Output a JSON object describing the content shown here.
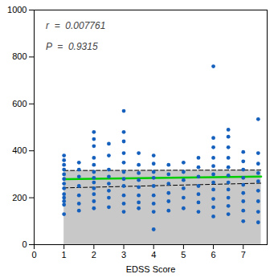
{
  "chart_data": {
    "type": "scatter",
    "xlabel": "EDSS Score",
    "xlim": [
      0,
      7.8
    ],
    "ylim": [
      0,
      1000
    ],
    "xticks": [
      0,
      1,
      2,
      3,
      4,
      5,
      6,
      7
    ],
    "yticks": [
      0,
      200,
      400,
      600,
      800,
      1000
    ],
    "annotations": [
      "r  =  0.007761",
      "P  =  0.9315"
    ],
    "color": "#1560BD",
    "x": [
      1.0,
      1.0,
      1.0,
      1.0,
      1.0,
      1.0,
      1.0,
      1.0,
      1.0,
      1.0,
      1.0,
      1.0,
      1.0,
      1.5,
      1.5,
      1.5,
      1.5,
      1.5,
      1.5,
      1.5,
      2.0,
      2.0,
      2.0,
      2.0,
      2.0,
      2.0,
      2.0,
      2.0,
      2.0,
      2.0,
      2.0,
      2.0,
      2.5,
      2.5,
      2.5,
      2.5,
      2.5,
      2.5,
      2.5,
      2.5,
      3.0,
      3.0,
      3.0,
      3.0,
      3.0,
      3.0,
      3.0,
      3.0,
      3.0,
      3.0,
      3.0,
      3.5,
      3.5,
      3.5,
      3.5,
      3.5,
      3.5,
      3.5,
      3.5,
      4.0,
      4.0,
      4.0,
      4.0,
      4.0,
      4.0,
      4.0,
      4.0,
      4.0,
      4.5,
      4.5,
      4.5,
      4.5,
      4.5,
      4.5,
      5.0,
      5.0,
      5.0,
      5.0,
      5.0,
      5.0,
      5.5,
      5.5,
      5.5,
      5.5,
      5.5,
      5.5,
      5.5,
      6.0,
      6.0,
      6.0,
      6.0,
      6.0,
      6.0,
      6.0,
      6.0,
      6.0,
      6.0,
      6.0,
      6.5,
      6.5,
      6.5,
      6.5,
      6.5,
      6.5,
      6.5,
      6.5,
      6.5,
      6.5,
      6.5,
      7.0,
      7.0,
      7.0,
      7.0,
      7.0,
      7.0,
      7.0,
      7.0,
      7.0,
      7.5,
      7.5,
      7.5,
      7.5,
      7.5,
      7.5,
      7.5,
      7.5,
      7.5
    ],
    "values": [
      130,
      170,
      185,
      200,
      215,
      240,
      260,
      280,
      300,
      320,
      340,
      360,
      380,
      145,
      175,
      210,
      250,
      290,
      320,
      350,
      155,
      185,
      215,
      240,
      265,
      285,
      310,
      340,
      370,
      420,
      450,
      480,
      160,
      200,
      230,
      260,
      290,
      320,
      380,
      430,
      140,
      175,
      210,
      250,
      280,
      310,
      350,
      390,
      440,
      480,
      570,
      155,
      180,
      210,
      245,
      275,
      305,
      340,
      390,
      65,
      140,
      175,
      210,
      250,
      285,
      310,
      345,
      380,
      145,
      185,
      220,
      260,
      300,
      340,
      155,
      200,
      240,
      275,
      310,
      350,
      140,
      180,
      215,
      250,
      290,
      330,
      370,
      120,
      160,
      195,
      235,
      265,
      300,
      335,
      370,
      415,
      455,
      760,
      130,
      165,
      200,
      235,
      265,
      295,
      330,
      370,
      415,
      460,
      490,
      100,
      145,
      185,
      220,
      255,
      285,
      320,
      355,
      395,
      95,
      140,
      185,
      230,
      270,
      305,
      345,
      390,
      535
    ],
    "regression_line": {
      "x": [
        1.0,
        7.6
      ],
      "values": [
        279.0,
        290.0
      ],
      "color": "#00CC00",
      "line_style": "solid"
    },
    "ci_upper": {
      "x": [
        1.0,
        7.6
      ],
      "values": [
        316.0,
        318.0
      ],
      "color": "#000000",
      "line_style": "dashed"
    },
    "ci_lower": {
      "x": [
        1.0,
        7.6
      ],
      "values": [
        242.0,
        262.0
      ],
      "color": "#000000",
      "line_style": "dashed"
    },
    "ci_fill_color": "#C8C8C8"
  }
}
